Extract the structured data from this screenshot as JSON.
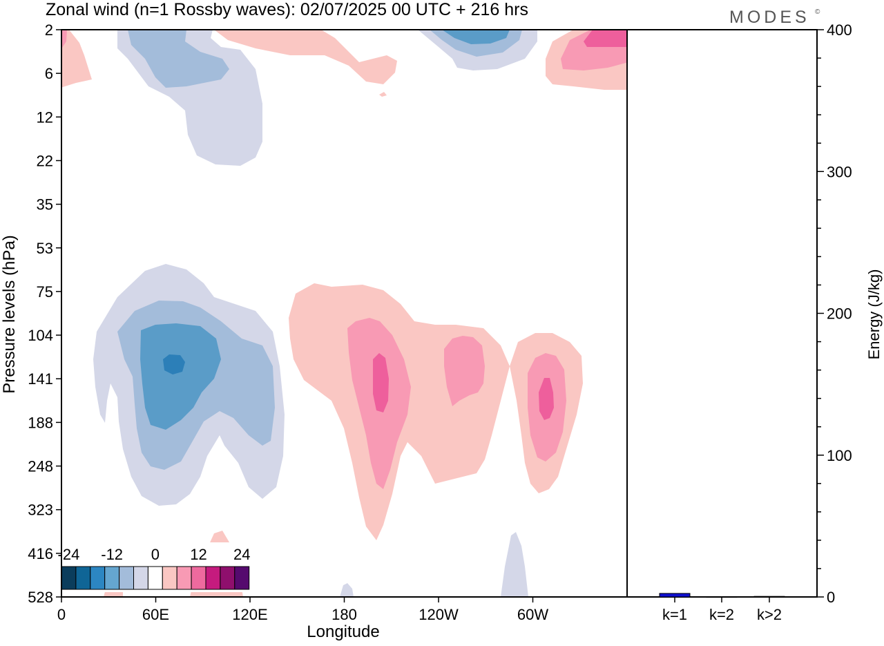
{
  "header": {
    "title": "Zonal wind (n=1 Rossby waves):  02/07/2025  00 UTC  + 216 hrs",
    "logo": "MODES",
    "logo_mark": "©"
  },
  "chart_data": [
    {
      "type": "contour",
      "xlabel": "Longitude",
      "ylabel": "Pressure levels (hPa)",
      "x_ticks": [
        "0",
        "60E",
        "120E",
        "180",
        "120W",
        "60W"
      ],
      "y_ticks": [
        "2",
        "6",
        "12",
        "22",
        "35",
        "53",
        "75",
        "104",
        "141",
        "188",
        "248",
        "323",
        "416",
        "528"
      ],
      "colorbar": {
        "tick_labels": [
          "-24",
          "-12",
          "0",
          "12",
          "24"
        ],
        "colors": [
          "#0b3d5c",
          "#0f6596",
          "#2c86c2",
          "#65a6d0",
          "#a3bcda",
          "#d4d7e8",
          "#ffffff",
          "#fac7c3",
          "#f89ab4",
          "#ee6a9e",
          "#c51b7e",
          "#8f0f6d",
          "#550a6e"
        ]
      },
      "colors": {
        "neg_light": "#d4d7e8",
        "neg_mid": "#a3bcda",
        "neg_strong": "#5a9cc8",
        "neg_core": "#2c7fb8",
        "pos_light": "#fac7c3",
        "pos_mid": "#f89ab4",
        "pos_strong": "#ee5f9c"
      }
    },
    {
      "type": "bar",
      "ylabel": "Energy (J/kg)",
      "categories": [
        "k=1",
        "k=2",
        "k>2"
      ],
      "values": [
        2.5,
        0.2,
        0.4
      ],
      "ylim": [
        0,
        400
      ],
      "y_ticks": [
        "0",
        "100",
        "200",
        "300",
        "400"
      ],
      "bar_color": "#1010d0"
    }
  ]
}
